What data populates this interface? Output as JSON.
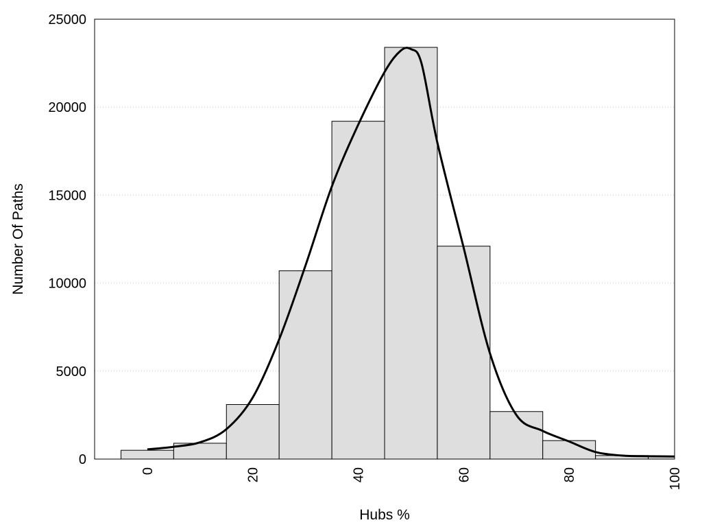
{
  "chart_data": {
    "type": "bar",
    "title": "",
    "xlabel": "Hubs %",
    "ylabel": "Number Of Paths",
    "xlim": [
      -10,
      100
    ],
    "ylim": [
      0,
      25000
    ],
    "x_ticks": [
      "0",
      "20",
      "40",
      "60",
      "80",
      "100"
    ],
    "y_ticks": [
      "0",
      "5000",
      "10000",
      "15000",
      "20000",
      "25000"
    ],
    "grid": "horizontal dotted",
    "legend": "none",
    "bin_width": 10,
    "bins": [
      {
        "center": 0,
        "value": 500
      },
      {
        "center": 10,
        "value": 900
      },
      {
        "center": 20,
        "value": 3100
      },
      {
        "center": 30,
        "value": 10700
      },
      {
        "center": 40,
        "value": 19200
      },
      {
        "center": 50,
        "value": 23400
      },
      {
        "center": 60,
        "value": 12100
      },
      {
        "center": 70,
        "value": 2700
      },
      {
        "center": 80,
        "value": 1050
      },
      {
        "center": 90,
        "value": 200
      },
      {
        "center": 100,
        "value": 150
      }
    ],
    "curve": {
      "x": [
        0,
        5,
        10,
        15,
        20,
        25,
        30,
        35,
        40,
        45,
        48,
        50,
        52,
        55,
        60,
        65,
        70,
        75,
        80,
        85,
        90,
        95,
        100
      ],
      "y": [
        550,
        700,
        950,
        1700,
        3500,
        6800,
        11000,
        15500,
        19000,
        22000,
        23200,
        23300,
        22500,
        18000,
        12000,
        6000,
        2500,
        1600,
        1000,
        400,
        200,
        160,
        150
      ]
    },
    "bar_color": "#dedede",
    "curve_color": "#000000"
  }
}
